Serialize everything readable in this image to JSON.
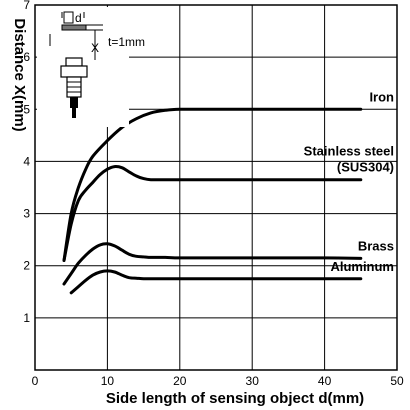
{
  "chart_data": {
    "type": "line",
    "xlabel": "Side length of sensing object d(mm)",
    "ylabel": "Distance X(mm)",
    "xlim": [
      0,
      50
    ],
    "ylim": [
      0,
      7
    ],
    "xticks": [
      "0",
      "10",
      "20",
      "30",
      "40",
      "50"
    ],
    "yticks": [
      "1",
      "2",
      "3",
      "4",
      "5",
      "6",
      "7"
    ],
    "grid": true,
    "inset_note": "t=1mm",
    "inset_letters": [
      "d",
      "X"
    ],
    "series": [
      {
        "name": "Iron",
        "x": [
          4,
          5,
          6,
          7,
          8,
          10,
          12,
          14,
          16,
          18,
          20,
          25,
          30,
          35,
          40,
          45
        ],
        "y": [
          2.1,
          3.0,
          3.5,
          3.85,
          4.1,
          4.4,
          4.65,
          4.82,
          4.93,
          4.98,
          5.0,
          5.0,
          5.0,
          5.0,
          5.0,
          5.0
        ]
      },
      {
        "name": "Stainless steel (SUS304)",
        "label_lines": [
          "Stainless steel",
          "(SUS304)"
        ],
        "x": [
          4,
          5,
          6,
          7,
          8,
          9,
          10,
          11,
          12,
          13,
          14,
          15,
          16,
          18,
          20,
          25,
          30,
          35,
          40,
          45
        ],
        "y": [
          2.1,
          2.8,
          3.25,
          3.45,
          3.6,
          3.75,
          3.85,
          3.9,
          3.88,
          3.8,
          3.72,
          3.67,
          3.65,
          3.65,
          3.65,
          3.65,
          3.65,
          3.65,
          3.65,
          3.65
        ]
      },
      {
        "name": "Brass",
        "x": [
          4,
          5,
          6,
          7,
          8,
          9,
          10,
          11,
          12,
          13,
          14,
          15,
          16,
          18,
          20,
          25,
          30,
          35,
          40,
          45
        ],
        "y": [
          1.65,
          1.85,
          2.05,
          2.2,
          2.32,
          2.4,
          2.42,
          2.38,
          2.3,
          2.22,
          2.18,
          2.17,
          2.16,
          2.16,
          2.15,
          2.15,
          2.15,
          2.15,
          2.15,
          2.14
        ]
      },
      {
        "name": "Aluminum",
        "x": [
          5,
          6,
          7,
          8,
          9,
          10,
          11,
          12,
          13,
          14,
          15,
          16,
          18,
          20,
          25,
          30,
          35,
          40,
          45
        ],
        "y": [
          1.48,
          1.6,
          1.72,
          1.82,
          1.88,
          1.9,
          1.88,
          1.82,
          1.77,
          1.76,
          1.75,
          1.75,
          1.75,
          1.75,
          1.75,
          1.75,
          1.75,
          1.75,
          1.75
        ]
      }
    ]
  }
}
